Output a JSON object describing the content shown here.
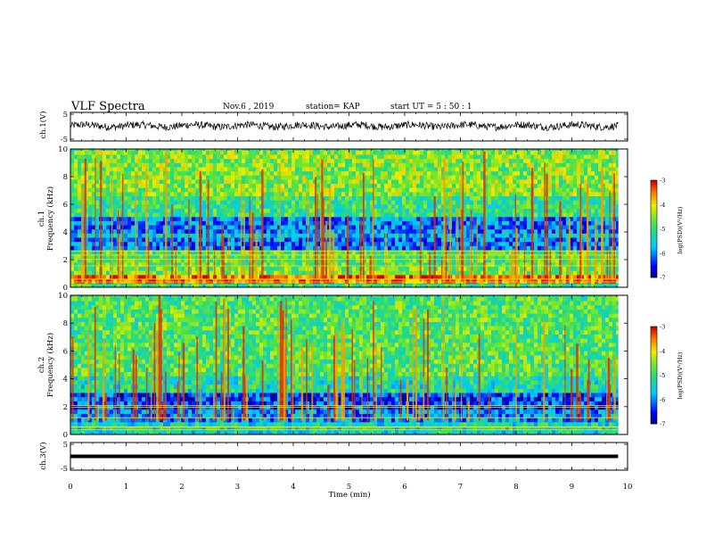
{
  "header": {
    "title": "VLF Spectra",
    "date": "Nov.6  , 2019",
    "station": "station= KAP",
    "start_ut": "start  UT =   5  : 50 : 1"
  },
  "chart_data": [
    {
      "type": "line",
      "name": "ch1-waveform",
      "ylabel": "ch.1(V)",
      "ylim": [
        -5,
        5
      ],
      "y_tick_labels": [
        "5",
        "-5"
      ],
      "xlim": [
        0,
        10
      ],
      "x_end_min": 9.83,
      "mean_level": 0.3,
      "spread": 1.3
    },
    {
      "type": "heatmap",
      "name": "ch1-spectrogram",
      "ylabel_line1": "ch.1",
      "ylabel_line2": "Frequency  (kHz)",
      "ylim": [
        0,
        10
      ],
      "y_tick_labels": [
        "0",
        "2",
        "4",
        "6",
        "8",
        "10"
      ],
      "xlim": [
        0,
        10
      ],
      "x_end_min": 9.83,
      "colorbar": {
        "label": "log(PSD)(V²/Hz)",
        "range": [
          -7,
          -3
        ],
        "tick_labels": [
          "-3",
          "-4",
          "-5",
          "-6",
          "-7"
        ]
      },
      "bands_khz": [
        {
          "from": 0,
          "to": 0.4,
          "level": -5.0
        },
        {
          "from": 0.4,
          "to": 0.8,
          "level": -3.4
        },
        {
          "from": 0.8,
          "to": 1.6,
          "level": -4.6
        },
        {
          "from": 1.6,
          "to": 2.6,
          "level": -4.8
        },
        {
          "from": 2.6,
          "to": 3.5,
          "level": -6.1
        },
        {
          "from": 3.5,
          "to": 4.0,
          "level": -5.6
        },
        {
          "from": 4.0,
          "to": 5.2,
          "level": -6.0
        },
        {
          "from": 5.2,
          "to": 6.5,
          "level": -5.0
        },
        {
          "from": 6.5,
          "to": 10,
          "level": -4.5
        }
      ]
    },
    {
      "type": "heatmap",
      "name": "ch2-spectrogram",
      "ylabel_line1": "ch.2",
      "ylabel_line2": "Frequency  (kHz)",
      "ylim": [
        0,
        10
      ],
      "y_tick_labels": [
        "0",
        "2",
        "4",
        "6",
        "8",
        "10"
      ],
      "xlim": [
        0,
        10
      ],
      "x_end_min": 9.83,
      "colorbar": {
        "label": "log(PSD)(V²/Hz)",
        "range": [
          -7,
          -3
        ],
        "tick_labels": [
          "-3",
          "-4",
          "-5",
          "-6",
          "-7"
        ]
      },
      "bands_khz": [
        {
          "from": 0,
          "to": 1.0,
          "level": -5.3
        },
        {
          "from": 1.0,
          "to": 1.8,
          "level": -5.9
        },
        {
          "from": 1.8,
          "to": 3.0,
          "level": -6.3
        },
        {
          "from": 3.0,
          "to": 4.2,
          "level": -5.2
        },
        {
          "from": 4.2,
          "to": 10,
          "level": -4.8
        }
      ]
    },
    {
      "type": "line",
      "name": "ch3-waveform",
      "ylabel": "ch.3(V)",
      "ylim": [
        -5,
        5
      ],
      "y_tick_labels": [
        "5",
        "-5"
      ],
      "xlim": [
        0,
        10
      ],
      "x_end_min": 9.83,
      "constant_value": 0
    }
  ],
  "x_axis": {
    "label": "Time  (min)",
    "tick_labels": [
      "0",
      "1",
      "2",
      "3",
      "4",
      "5",
      "6",
      "7",
      "8",
      "9",
      "10"
    ]
  }
}
